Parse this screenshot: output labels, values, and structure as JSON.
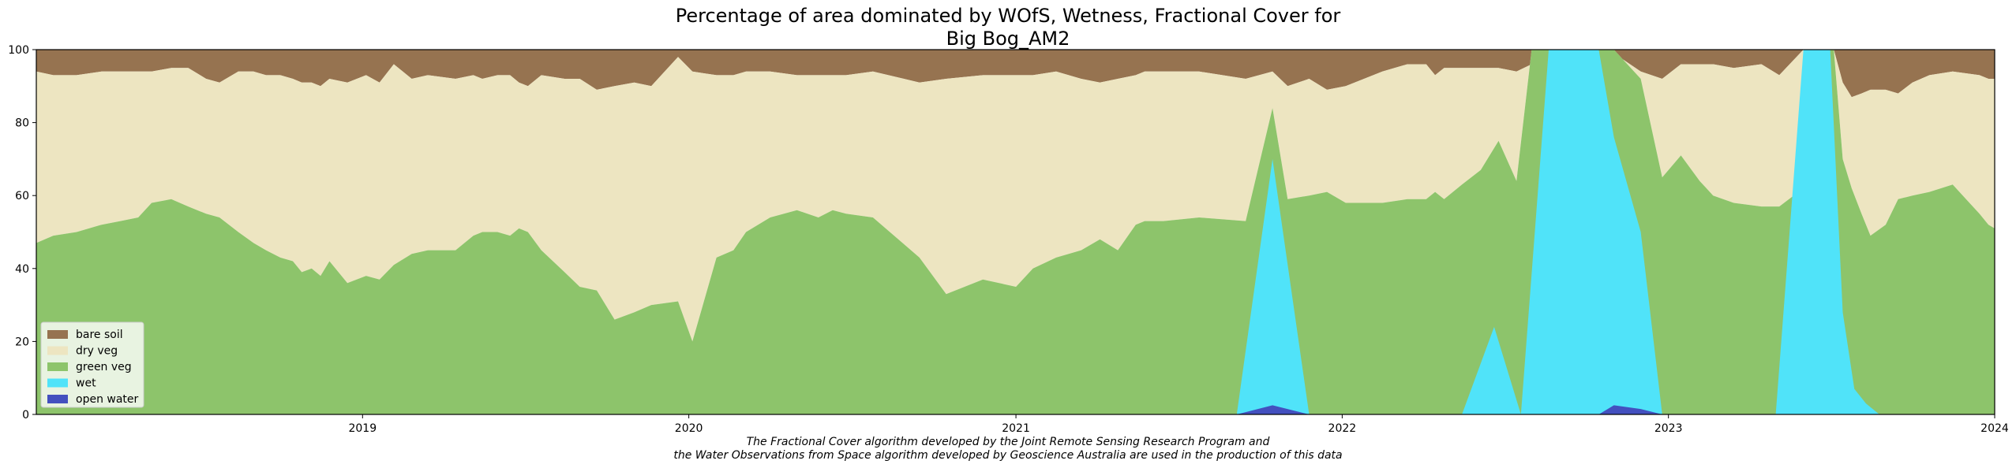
{
  "chart_data": {
    "type": "area",
    "stacked": true,
    "title_line1": "Percentage of area dominated by WOfS, Wetness, Fractional Cover for",
    "title_line2": "Big Bog_AM2",
    "caption_line1": "The Fractional Cover algorithm developed by the Joint Remote Sensing Research Program and",
    "caption_line2": "the Water Observations from Space algorithm developed by Geoscience Australia are used in the production of this data",
    "xlim": [
      "2018-01-01",
      "2024-01-01"
    ],
    "ylim": [
      0,
      100
    ],
    "x_ticks": [
      "2019",
      "2020",
      "2021",
      "2022",
      "2023",
      "2024"
    ],
    "y_ticks": [
      "0",
      "20",
      "40",
      "60",
      "80",
      "100"
    ],
    "grid": false,
    "legend_position": "lower-left",
    "legend": [
      {
        "key": "bare_soil",
        "label": "bare soil",
        "color": "#967350"
      },
      {
        "key": "dry_veg",
        "label": "dry veg",
        "color": "#ede5c1"
      },
      {
        "key": "green_veg",
        "label": "green veg",
        "color": "#8dc46b"
      },
      {
        "key": "wet",
        "label": "wet",
        "color": "#50e3f9"
      },
      {
        "key": "open_water",
        "label": "open water",
        "color": "#4350bf"
      }
    ],
    "boundary_x": [
      "2018-01-01",
      "2018-01-20",
      "2018-02-15",
      "2018-03-15",
      "2018-04-05",
      "2018-04-25",
      "2018-05-10",
      "2018-06-01",
      "2018-06-20",
      "2018-07-10",
      "2018-07-25",
      "2018-08-15",
      "2018-09-01",
      "2018-09-15",
      "2018-10-01",
      "2018-10-15",
      "2018-10-25",
      "2018-11-05",
      "2018-11-15",
      "2018-11-25",
      "2018-12-15",
      "2019-01-05",
      "2019-01-20",
      "2019-02-05",
      "2019-02-25",
      "2019-03-15",
      "2019-04-15",
      "2019-05-05",
      "2019-05-15",
      "2019-06-01",
      "2019-06-15",
      "2019-06-25",
      "2019-07-05",
      "2019-07-20",
      "2019-08-15",
      "2019-09-01",
      "2019-09-20",
      "2019-10-10",
      "2019-11-01",
      "2019-11-20",
      "2019-12-20",
      "2020-01-05",
      "2020-02-01",
      "2020-02-20",
      "2020-03-05",
      "2020-04-01",
      "2020-05-01",
      "2020-05-25",
      "2020-06-10",
      "2020-06-25",
      "2020-07-25",
      "2020-09-15",
      "2020-10-15",
      "2020-11-25",
      "2021-01-01",
      "2021-01-20",
      "2021-02-15",
      "2021-03-15",
      "2021-04-05",
      "2021-04-25",
      "2021-05-15",
      "2021-05-25",
      "2021-06-15",
      "2021-07-25",
      "2021-09-15",
      "2021-10-15",
      "2021-11-01",
      "2021-11-25",
      "2021-12-15",
      "2022-01-05",
      "2022-02-15",
      "2022-03-15",
      "2022-04-05",
      "2022-04-15",
      "2022-04-25",
      "2022-05-15",
      "2022-06-05",
      "2022-06-25",
      "2022-07-15",
      "2022-08-01",
      "2022-09-01",
      "2022-10-15",
      "2022-11-01",
      "2022-12-01",
      "2022-12-25",
      "2023-01-15",
      "2023-02-05",
      "2023-02-20",
      "2023-03-15",
      "2023-04-15",
      "2023-05-05",
      "2023-06-01",
      "2023-06-15",
      "2023-07-05",
      "2023-07-15",
      "2023-07-25",
      "2023-08-05",
      "2023-08-15",
      "2023-09-01",
      "2023-09-15",
      "2023-10-01",
      "2023-10-20",
      "2023-11-15",
      "2023-12-15",
      "2023-12-25",
      "2024-01-01"
    ],
    "green_veg_upper": [
      47,
      49,
      50,
      52,
      53,
      54,
      58,
      59,
      57,
      55,
      54,
      50,
      47,
      45,
      43,
      42,
      39,
      40,
      38,
      42,
      36,
      38,
      37,
      41,
      44,
      45,
      45,
      49,
      50,
      50,
      49,
      51,
      50,
      45,
      39,
      35,
      34,
      26,
      28,
      30,
      31,
      20,
      43,
      45,
      50,
      54,
      56,
      54,
      56,
      55,
      54,
      43,
      33,
      37,
      35,
      40,
      43,
      45,
      48,
      45,
      52,
      53,
      53,
      54,
      53,
      84,
      59,
      60,
      61,
      58,
      58,
      59,
      59,
      61,
      59,
      63,
      67,
      75,
      64,
      100,
      100,
      100,
      100,
      92,
      65,
      71,
      64,
      60,
      58,
      57,
      57,
      62,
      100,
      100,
      70,
      62,
      55,
      49,
      52,
      59,
      60,
      61,
      63,
      55,
      52,
      51
    ],
    "dry_veg_upper": [
      94,
      93,
      93,
      94,
      94,
      94,
      94,
      95,
      95,
      92,
      91,
      94,
      94,
      93,
      93,
      92,
      91,
      91,
      90,
      92,
      91,
      93,
      91,
      96,
      92,
      93,
      92,
      93,
      92,
      93,
      93,
      91,
      90,
      93,
      92,
      92,
      89,
      90,
      91,
      90,
      98,
      94,
      93,
      93,
      94,
      94,
      93,
      93,
      93,
      93,
      94,
      91,
      92,
      93,
      93,
      93,
      94,
      92,
      91,
      92,
      93,
      94,
      94,
      94,
      92,
      94,
      90,
      92,
      89,
      90,
      94,
      96,
      96,
      93,
      95,
      95,
      95,
      95,
      94,
      96,
      100,
      100,
      99,
      94,
      92,
      96,
      96,
      96,
      95,
      96,
      93,
      100,
      100,
      100,
      91,
      87,
      88,
      89,
      89,
      88,
      91,
      93,
      94,
      93,
      92,
      92
    ],
    "wet_events": [
      {
        "label": "late 2021",
        "x": [
          "2021-09-05",
          "2021-10-15",
          "2021-11-25"
        ],
        "wet_upper": [
          0,
          70,
          0
        ],
        "open_water_upper": [
          0,
          2.5,
          0
        ]
      },
      {
        "label": "2022",
        "x": [
          "2022-05-15",
          "2022-06-20",
          "2022-07-20",
          "2022-08-20",
          "2022-10-15",
          "2022-11-01",
          "2022-12-01",
          "2022-12-25"
        ],
        "wet_upper": [
          0,
          24,
          0,
          100,
          100,
          76,
          50,
          0
        ],
        "open_water_upper": [
          0,
          0,
          0,
          0,
          0,
          2.5,
          1.5,
          0
        ]
      },
      {
        "label": "2023",
        "x": [
          "2023-05-01",
          "2023-06-01",
          "2023-07-01",
          "2023-07-15",
          "2023-07-28",
          "2023-08-10",
          "2023-08-25"
        ],
        "wet_upper": [
          0,
          100,
          100,
          28,
          7,
          3,
          0
        ],
        "open_water_upper": [
          0,
          0,
          0,
          0,
          0,
          0,
          0
        ]
      }
    ]
  }
}
